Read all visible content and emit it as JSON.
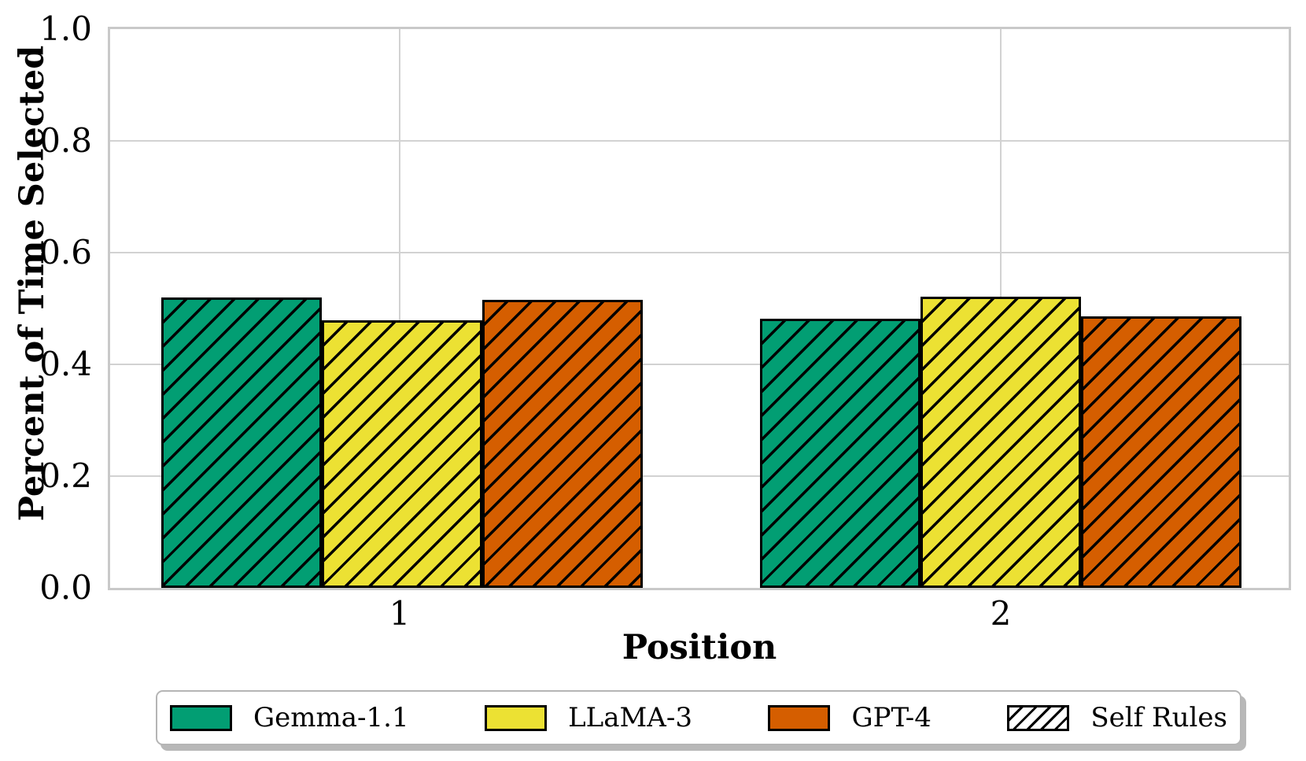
{
  "chart_data": {
    "type": "bar",
    "title": "",
    "xlabel": "Position",
    "ylabel": "Percent of Time Selected",
    "categories": [
      "1",
      "2"
    ],
    "series": [
      {
        "name": "Gemma-1.1",
        "color": "#029e73",
        "values": [
          0.52,
          0.481
        ]
      },
      {
        "name": "LLaMA-3",
        "color": "#ece133",
        "values": [
          0.479,
          0.521
        ]
      },
      {
        "name": "GPT-4",
        "color": "#d55e00",
        "values": [
          0.515,
          0.486
        ]
      }
    ],
    "hatch_legend": {
      "label": "Self Rules",
      "pattern": "diagonal-forward",
      "color": "#000000"
    },
    "ylim": [
      0.0,
      1.0
    ],
    "yticks": [
      "0.0",
      "0.2",
      "0.4",
      "0.6",
      "0.8",
      "1.0"
    ],
    "grid": true,
    "grid_color": "#d2d2d2",
    "bar_edge_color": "#000000",
    "legend_position": "bottom"
  }
}
